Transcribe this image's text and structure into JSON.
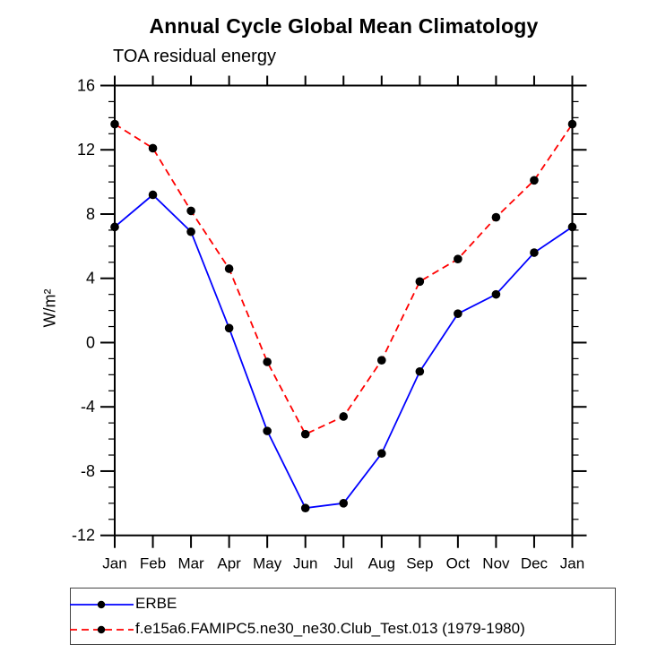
{
  "chart_data": {
    "type": "line",
    "title": "Annual Cycle Global Mean Climatology",
    "subtitle": "TOA residual energy",
    "ylabel": "W/m²",
    "categories": [
      "Jan",
      "Feb",
      "Mar",
      "Apr",
      "May",
      "Jun",
      "Jul",
      "Aug",
      "Sep",
      "Oct",
      "Nov",
      "Dec",
      "Jan"
    ],
    "ylim": [
      -12,
      16
    ],
    "yticks": [
      16,
      12,
      8,
      4,
      0,
      -4,
      -8,
      -12
    ],
    "minor_tick_step": 1,
    "grid": false,
    "legend_position": "bottom-left-outside",
    "axis_color": "#000000",
    "marker_color": "#000000",
    "series": [
      {
        "name": "ERBE",
        "color": "#0000ff",
        "line_style": "solid",
        "marker": "filled-circle",
        "values": [
          7.2,
          9.2,
          6.9,
          0.9,
          -5.5,
          -10.3,
          -10.0,
          -6.9,
          -1.8,
          1.8,
          3.0,
          5.6,
          7.2
        ]
      },
      {
        "name": "f.e15a6.FAMIPC5.ne30_ne30.Club_Test.013 (1979-1980)",
        "color": "#ff0000",
        "line_style": "dashed",
        "marker": "filled-circle",
        "values": [
          13.6,
          12.1,
          8.2,
          4.6,
          -1.2,
          -5.7,
          -4.6,
          -1.1,
          3.8,
          5.2,
          7.8,
          10.1,
          13.6
        ]
      }
    ]
  }
}
